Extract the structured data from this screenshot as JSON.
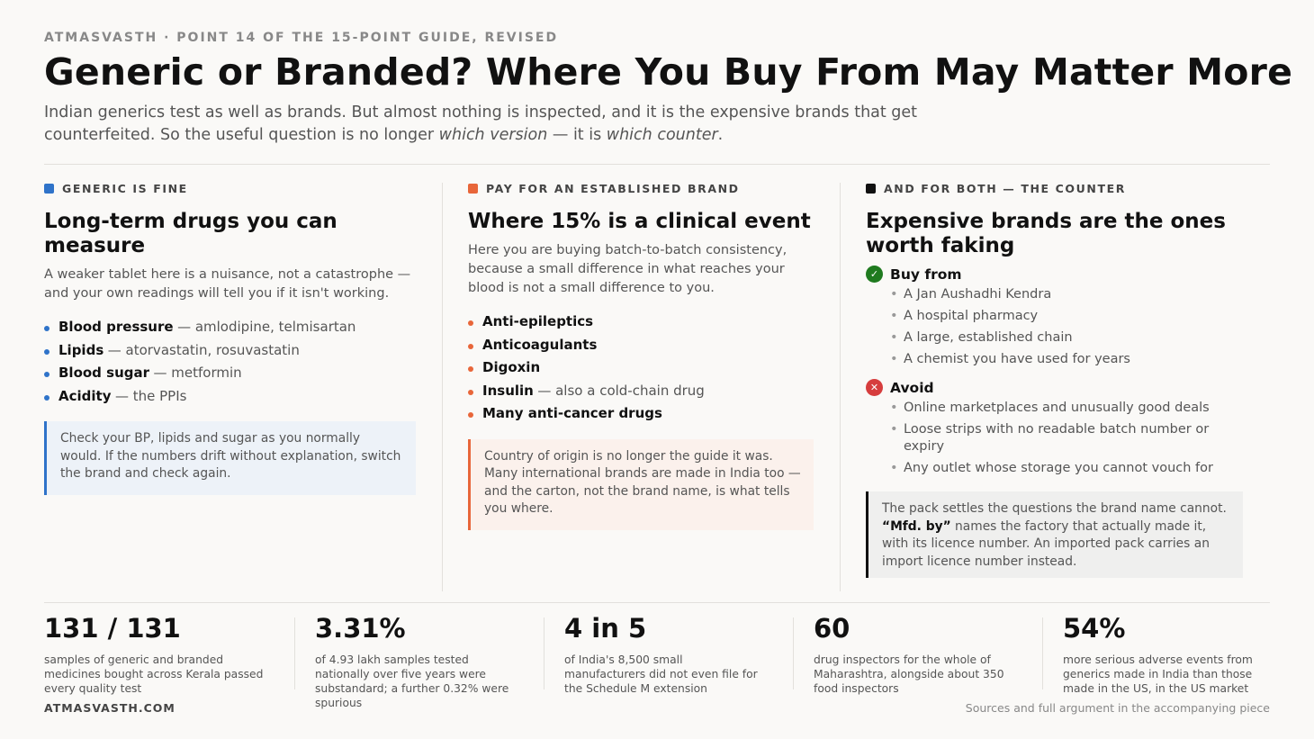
{
  "header": {
    "kicker": "ATMASVASTH · POINT 14 OF THE 15-POINT GUIDE, REVISED",
    "title": "Generic or Branded? Where You Buy From May Matter More",
    "subtitle": [
      "Indian generics test as well as brands. But almost nothing is inspected, and it is the expensive brands that get counterfeited. So the useful question is no longer ",
      "which version",
      " — it is ",
      "which counter",
      "."
    ]
  },
  "columns": [
    {
      "label": "GENERIC IS FINE",
      "heading": "Long-term drugs you can measure",
      "intro": "A weaker tablet here is a nuisance, not a catastrophe — and your own readings will tell you if it isn't working.",
      "items": [
        {
          "bold": "Blood pressure",
          "rest": "— amlodipine, telmisartan"
        },
        {
          "bold": "Lipids",
          "rest": "— atorvastatin, rosuvastatin"
        },
        {
          "bold": "Blood sugar",
          "rest": "— metformin"
        },
        {
          "bold": "Acidity",
          "rest": "— the PPIs"
        }
      ],
      "note": [
        "Check your BP, lipids and sugar as you normally would. If the numbers drift without explanation, switch the brand and check again."
      ]
    },
    {
      "label": "PAY FOR AN ESTABLISHED BRAND",
      "heading": "Where 15% is a clinical event",
      "intro": "Here you are buying batch-to-batch consistency, because a small difference in what reaches your blood is not a small difference to you.",
      "items": [
        {
          "bold": "Anti-epileptics"
        },
        {
          "bold": "Anticoagulants"
        },
        {
          "bold": "Digoxin"
        },
        {
          "bold": "Insulin",
          "rest": "— also a cold-chain drug"
        },
        {
          "bold": "Many anti-cancer drugs"
        }
      ],
      "note": [
        "Country of origin is no longer the guide it was. Many international brands are made in India too — and the carton, not the brand name, is what tells you where."
      ]
    },
    {
      "label": "AND FOR BOTH — THE COUNTER",
      "heading": "Expensive brands are the ones worth faking",
      "groups": [
        {
          "title": "Buy from",
          "items": [
            "A Jan Aushadhi Kendra",
            "A hospital pharmacy",
            "A large, established chain",
            "A chemist you have used for years"
          ]
        },
        {
          "title": "Avoid",
          "items": [
            "Online marketplaces and unusually good deals",
            "Loose strips with no readable batch number or expiry",
            "Any outlet whose storage you cannot vouch for"
          ]
        }
      ],
      "note": [
        "The pack settles the questions the brand name cannot. ",
        "“Mfd. by”",
        " names the factory that actually made it, with its licence number. An imported pack carries an import licence number instead."
      ]
    }
  ],
  "stats": [
    {
      "value": "131 / 131",
      "text": "samples of generic and branded medicines bought across Kerala passed every quality test"
    },
    {
      "value": "3.31%",
      "text": "of 4.93 lakh samples tested nationally over five years were substandard; a further 0.32% were spurious"
    },
    {
      "value": "4 in 5",
      "text": "of India's 8,500 small manufacturers did not even file for the Schedule M extension"
    },
    {
      "value": "60",
      "text": "drug inspectors for the whole of Maharashtra, alongside about 350 food inspectors"
    },
    {
      "value": "54%",
      "text": "more serious adverse events from generics made in India than those made in the US, in the US market"
    }
  ],
  "footer": {
    "brand": "ATMASVASTH.COM",
    "sources": "Sources and full argument in the accompanying piece"
  }
}
